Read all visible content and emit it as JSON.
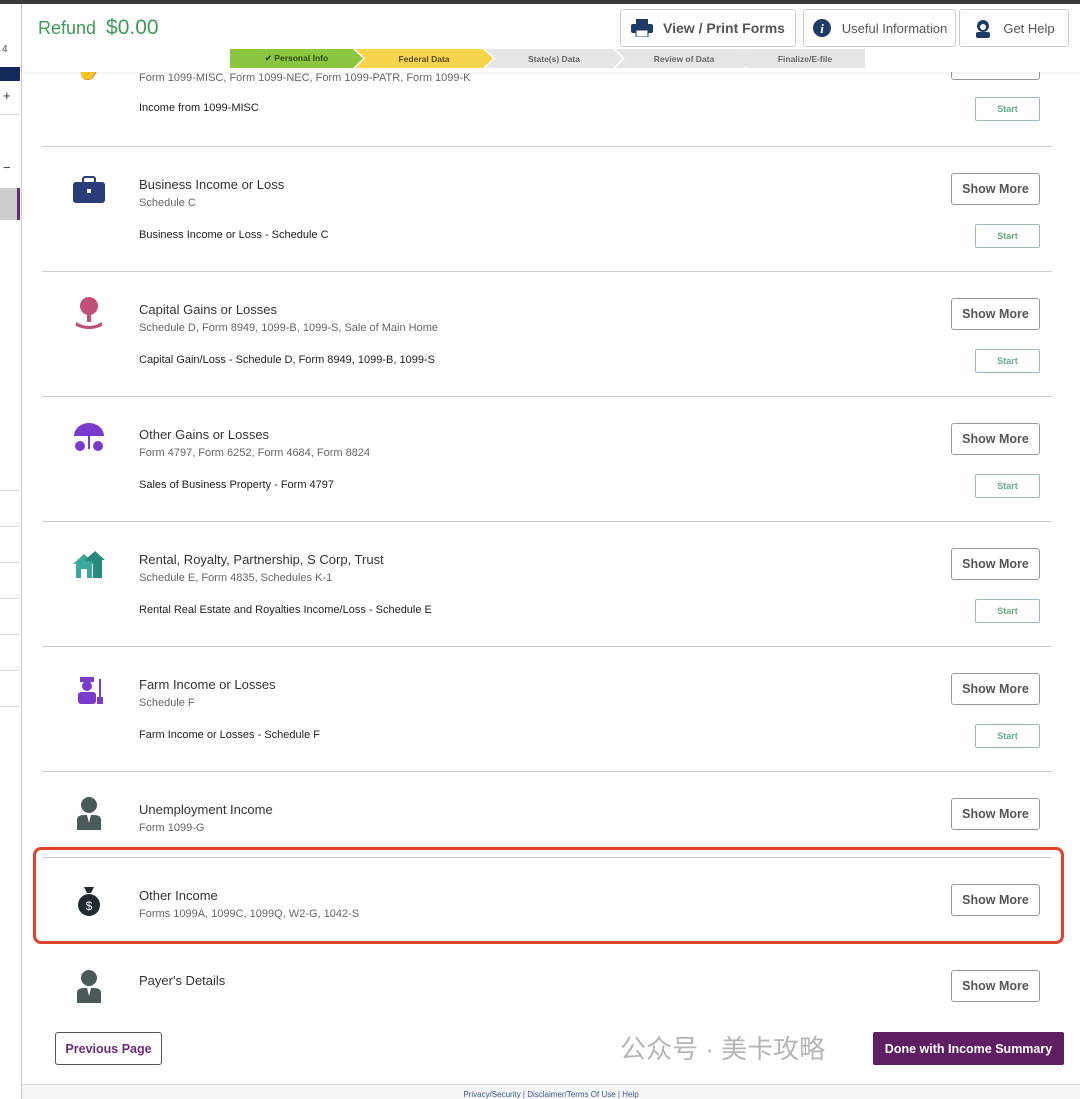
{
  "sidebar": {
    "number": "4",
    "plus": "+",
    "minus": "−"
  },
  "header": {
    "refund_label": "Refund",
    "refund_amount": "$0.00",
    "buttons": {
      "view_print": "View / Print Forms",
      "useful_info": "Useful Information",
      "get_help": "Get Help"
    },
    "steps": [
      {
        "label": "✔ Personal Info",
        "color": "#8cc63f"
      },
      {
        "label": "Federal Data",
        "color": "#f7d54a"
      },
      {
        "label": "State(s) Data",
        "color": "#e6e6e6"
      },
      {
        "label": "Review of Data",
        "color": "#e6e6e6"
      },
      {
        "label": "Finalize/E-file",
        "color": "#e6e6e6"
      }
    ]
  },
  "sections": [
    {
      "title": "",
      "subtitle": "Form 1099-MISC, Form 1099-NEC, Form 1099-PATR, Form 1099-K",
      "item": "Income from 1099-MISC",
      "show_more": "Show More",
      "start": "Start",
      "icon": "money-hand-icon"
    },
    {
      "title": "Business Income or Loss",
      "subtitle": "Schedule C",
      "item": "Business Income or Loss - Schedule C",
      "show_more": "Show More",
      "start": "Start",
      "icon": "briefcase-icon"
    },
    {
      "title": "Capital Gains or Losses",
      "subtitle": "Schedule D, Form 8949, 1099-B, 1099-S, Sale of Main Home",
      "item": "Capital Gain/Loss - Schedule D, Form 8949, 1099-B, 1099-S",
      "show_more": "Show More",
      "start": "Start",
      "icon": "tree-hand-icon"
    },
    {
      "title": "Other Gains or Losses",
      "subtitle": "Form 4797, Form 6252, Form 4684, Form 8824",
      "item": "Sales of Business Property - Form 4797",
      "show_more": "Show More",
      "start": "Start",
      "icon": "umbrella-dollar-icon"
    },
    {
      "title": "Rental, Royalty, Partnership, S Corp, Trust",
      "subtitle": "Schedule E, Form 4835, Schedules K-1",
      "item": "Rental Real Estate and Royalties Income/Loss - Schedule E",
      "show_more": "Show More",
      "start": "Start",
      "icon": "houses-icon"
    },
    {
      "title": "Farm Income or Losses",
      "subtitle": "Schedule F",
      "item": "Farm Income or Losses - Schedule F",
      "show_more": "Show More",
      "start": "Start",
      "icon": "farmer-icon"
    },
    {
      "title": "Unemployment Income",
      "subtitle": "Form 1099-G",
      "show_more": "Show More",
      "icon": "person-icon"
    },
    {
      "title": "Other Income",
      "subtitle": "Forms 1099A, 1099C, 1099Q, W2-G, 1042-S",
      "show_more": "Show More",
      "icon": "money-bag-icon"
    },
    {
      "title": "Payer's Details",
      "subtitle": "",
      "show_more": "Show More",
      "icon": "person-icon"
    }
  ],
  "footer": {
    "previous": "Previous Page",
    "done": "Done with Income Summary",
    "links": "Privacy/Security  |  Disclaimer/Terms Of Use  |  Help"
  },
  "watermark": "公众号 · 美卡攻略"
}
